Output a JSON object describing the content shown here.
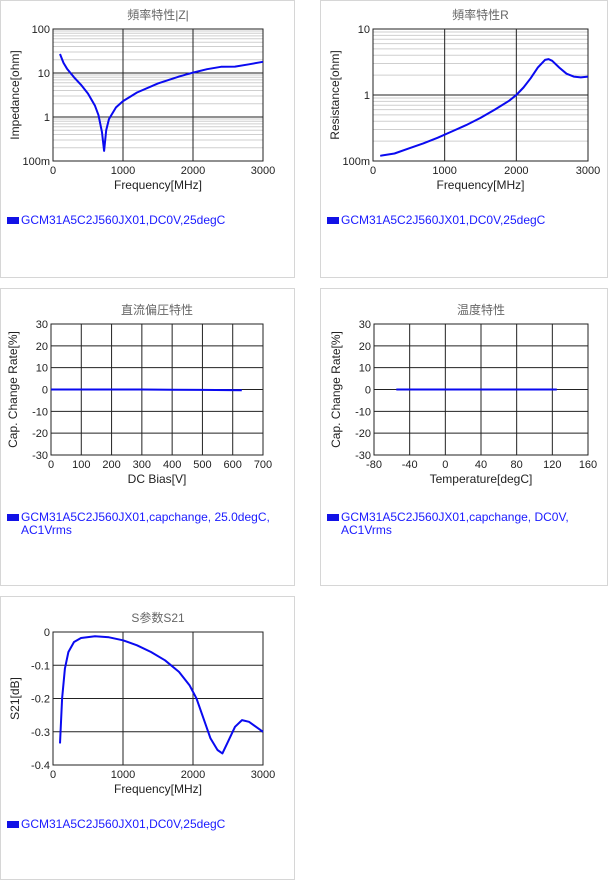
{
  "colors": {
    "series": "#0a0af0",
    "grid_major": "#222222",
    "grid_minor": "#cfcfcf",
    "legend_text": "#1a1aff"
  },
  "panels": [
    {
      "legend_icon": "legend-swatch-icon",
      "legend": "GCM31A5C2J560JX01,DC0V,25degC"
    },
    {
      "legend_icon": "legend-swatch-icon",
      "legend": "GCM31A5C2J560JX01,DC0V,25degC"
    },
    {
      "legend_icon": "legend-swatch-icon",
      "legend": "GCM31A5C2J560JX01,capchange, 25.0degC, AC1Vrms"
    },
    {
      "legend_icon": "legend-swatch-icon",
      "legend": "GCM31A5C2J560JX01,capchange, DC0V, AC1Vrms"
    },
    {
      "legend_icon": "legend-swatch-icon",
      "legend": "GCM31A5C2J560JX01,DC0V,25degC"
    }
  ],
  "chart_data": [
    {
      "type": "line",
      "title": "頻率特性|Z|",
      "xlabel": "Frequency[MHz]",
      "ylabel": "Impedance[ohm]",
      "yscale": "log",
      "xlim": [
        0,
        3000
      ],
      "ylim": [
        0.1,
        100
      ],
      "xticks": [
        0,
        1000,
        2000,
        3000
      ],
      "xtick_labels": [
        "0",
        "1000",
        "2000",
        "3000"
      ],
      "yticks": [
        0.1,
        1,
        10,
        100
      ],
      "ytick_labels": [
        "100m",
        "1",
        "10",
        "100"
      ],
      "grid": true,
      "series": [
        {
          "x": [
            100,
            150,
            200,
            300,
            400,
            500,
            600,
            650,
            700,
            730,
            760,
            800,
            900,
            1000,
            1200,
            1500,
            1800,
            2000,
            2200,
            2400,
            2600,
            2800,
            3000
          ],
          "y": [
            27,
            17,
            12.5,
            8,
            5.4,
            3.4,
            1.8,
            1.1,
            0.45,
            0.17,
            0.5,
            0.9,
            1.65,
            2.3,
            3.6,
            5.8,
            8.3,
            10.2,
            12.2,
            13.8,
            14,
            15.8,
            18
          ]
        }
      ]
    },
    {
      "type": "line",
      "title": "頻率特性R",
      "xlabel": "Frequency[MHz]",
      "ylabel": "Resistance[ohm]",
      "yscale": "log",
      "xlim": [
        0,
        3000
      ],
      "ylim": [
        0.1,
        10
      ],
      "xticks": [
        0,
        1000,
        2000,
        3000
      ],
      "xtick_labels": [
        "0",
        "1000",
        "2000",
        "3000"
      ],
      "yticks": [
        0.1,
        1,
        10
      ],
      "ytick_labels": [
        "100m",
        "1",
        "10"
      ],
      "grid": true,
      "series": [
        {
          "x": [
            100,
            300,
            500,
            700,
            900,
            1100,
            1300,
            1500,
            1700,
            1900,
            2000,
            2100,
            2200,
            2300,
            2400,
            2450,
            2500,
            2600,
            2700,
            2800,
            2900,
            3000
          ],
          "y": [
            0.12,
            0.13,
            0.155,
            0.185,
            0.225,
            0.28,
            0.35,
            0.45,
            0.6,
            0.82,
            1.0,
            1.3,
            1.8,
            2.6,
            3.4,
            3.5,
            3.3,
            2.6,
            2.1,
            1.9,
            1.85,
            1.9
          ]
        }
      ]
    },
    {
      "type": "line",
      "title": "直流偏圧特性",
      "xlabel": "DC Bias[V]",
      "ylabel": "Cap. Change Rate[%]",
      "xlim": [
        0,
        700
      ],
      "ylim": [
        -30,
        30
      ],
      "xticks": [
        0,
        100,
        200,
        300,
        400,
        500,
        600,
        700
      ],
      "xtick_labels": [
        "0",
        "100",
        "200",
        "300",
        "400",
        "500",
        "600",
        "700"
      ],
      "yticks": [
        -30,
        -20,
        -10,
        0,
        10,
        20,
        30
      ],
      "ytick_labels": [
        "-30",
        "-20",
        "-10",
        "0",
        "10",
        "20",
        "30"
      ],
      "grid": true,
      "series": [
        {
          "x": [
            0,
            100,
            200,
            300,
            400,
            500,
            630
          ],
          "y": [
            0,
            0,
            0,
            0,
            -0.1,
            -0.2,
            -0.3
          ]
        }
      ]
    },
    {
      "type": "line",
      "title": "温度特性",
      "xlabel": "Temperature[degC]",
      "ylabel": "Cap. Change Rate[%]",
      "xlim": [
        -80,
        160
      ],
      "ylim": [
        -30,
        30
      ],
      "xticks": [
        -80,
        -40,
        0,
        40,
        80,
        120,
        160
      ],
      "xtick_labels": [
        "-80",
        "-40",
        "0",
        "40",
        "80",
        "120",
        "160"
      ],
      "yticks": [
        -30,
        -20,
        -10,
        0,
        10,
        20,
        30
      ],
      "ytick_labels": [
        "-30",
        "-20",
        "-10",
        "0",
        "10",
        "20",
        "30"
      ],
      "grid": true,
      "series": [
        {
          "x": [
            -55,
            0,
            50,
            125
          ],
          "y": [
            0,
            0,
            0,
            0
          ]
        }
      ]
    },
    {
      "type": "line",
      "title": "S参数S21",
      "xlabel": "Frequency[MHz]",
      "ylabel": "S21[dB]",
      "xlim": [
        0,
        3000
      ],
      "ylim": [
        -0.4,
        0
      ],
      "xticks": [
        0,
        1000,
        2000,
        3000
      ],
      "xtick_labels": [
        "0",
        "1000",
        "2000",
        "3000"
      ],
      "yticks": [
        -0.4,
        -0.3,
        -0.2,
        -0.1,
        0
      ],
      "ytick_labels": [
        "-0.4",
        "-0.3",
        "-0.2",
        "-0.1",
        "0"
      ],
      "grid": true,
      "series": [
        {
          "x": [
            100,
            130,
            170,
            220,
            300,
            400,
            600,
            800,
            1000,
            1200,
            1400,
            1600,
            1800,
            1950,
            2050,
            2150,
            2250,
            2350,
            2420,
            2500,
            2600,
            2700,
            2800,
            2900,
            3000
          ],
          "y": [
            -0.335,
            -0.2,
            -0.11,
            -0.06,
            -0.03,
            -0.018,
            -0.013,
            -0.016,
            -0.025,
            -0.04,
            -0.06,
            -0.085,
            -0.12,
            -0.16,
            -0.2,
            -0.26,
            -0.32,
            -0.355,
            -0.365,
            -0.33,
            -0.285,
            -0.265,
            -0.27,
            -0.285,
            -0.3
          ]
        }
      ]
    }
  ]
}
